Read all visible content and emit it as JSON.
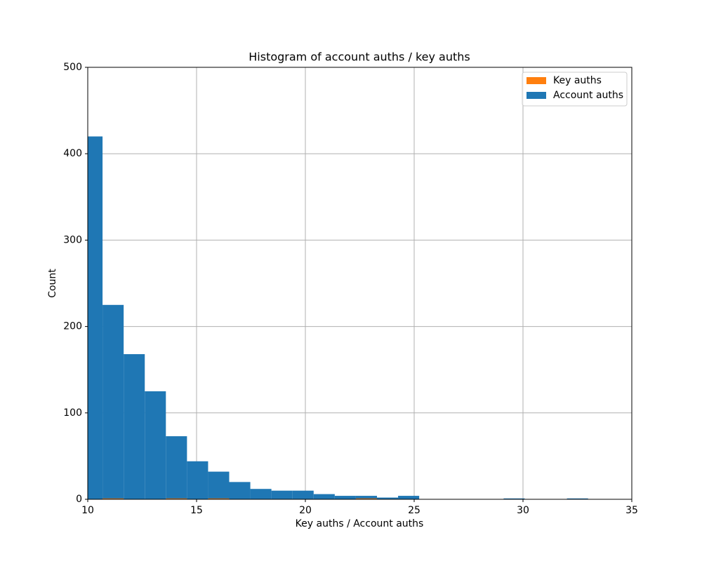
{
  "chart_data": {
    "type": "histogram",
    "title": "Histogram of account auths / key auths",
    "xlabel": "Key auths / Account auths",
    "ylabel": "Count",
    "bins": [
      9.71,
      10.68,
      11.65,
      12.62,
      13.59,
      14.56,
      15.53,
      16.5,
      17.47,
      18.44,
      19.41,
      20.38,
      21.35,
      22.32,
      23.29,
      24.26,
      25.23,
      26.2,
      27.17,
      28.14,
      29.11,
      30.08,
      31.05,
      32.02,
      32.99
    ],
    "series": [
      {
        "name": "Key auths",
        "color": "#ff7f0e",
        "values": [
          0,
          1,
          0,
          0,
          1,
          0,
          1,
          0,
          0,
          0,
          0,
          0,
          0,
          1,
          0,
          0,
          0,
          0,
          0,
          0,
          0,
          0,
          0,
          0
        ]
      },
      {
        "name": "Account auths",
        "color": "#1f77b4",
        "values": [
          420,
          225,
          168,
          125,
          73,
          44,
          32,
          20,
          12,
          10,
          10,
          6,
          4,
          4,
          2,
          4,
          0,
          0,
          0,
          0,
          1,
          0,
          0,
          1
        ]
      }
    ],
    "xlim": [
      10,
      35
    ],
    "xticks": [
      10,
      15,
      20,
      25,
      30,
      35
    ],
    "ylim": [
      0,
      500
    ],
    "yticks": [
      0,
      100,
      200,
      300,
      400,
      500
    ],
    "grid": true,
    "legend": "upper right"
  }
}
